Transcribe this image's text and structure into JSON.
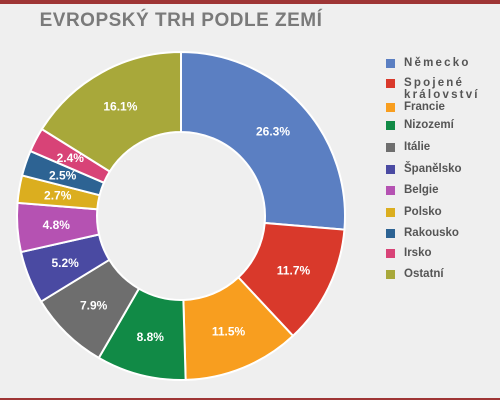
{
  "chart_data": {
    "type": "pie",
    "title": "EVROPSKÝ TRH PODLE ZEMÍ",
    "categories": [
      "Německo",
      "Spojené království",
      "Francie",
      "Nizozemí",
      "Itálie",
      "Španělsko",
      "Belgie",
      "Polsko",
      "Rakousko",
      "Irsko",
      "Ostatní"
    ],
    "values": [
      26.3,
      11.7,
      11.5,
      8.8,
      7.9,
      5.2,
      4.8,
      2.7,
      2.5,
      2.4,
      16.1
    ],
    "labels": [
      "26.3%",
      "11.7%",
      "11.5%",
      "8.8%",
      "7.9%",
      "5.2%",
      "4.8%",
      "2.7%",
      "2.5%",
      "2.4%",
      "16.1%"
    ],
    "colors": [
      "#5b7fc2",
      "#d9392b",
      "#f89e1f",
      "#118a46",
      "#6e6e6e",
      "#4a4aa2",
      "#b552b2",
      "#dbae1f",
      "#2d6393",
      "#d84377",
      "#a8a83a"
    ],
    "legend_labels": [
      "Německo",
      "Spojené království",
      "Francie",
      "Nizozemí",
      "Itálie",
      "Španělsko",
      "Belgie",
      "Polsko",
      "Rakousko",
      "Irsko",
      "Ostatní"
    ],
    "donut": true,
    "legend_position": "right"
  }
}
